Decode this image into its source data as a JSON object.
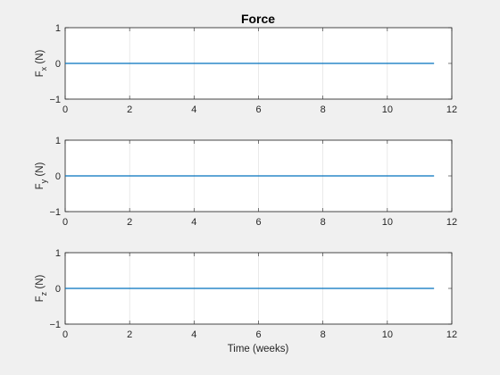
{
  "chart_data": {
    "type": "line",
    "title": "Force",
    "xlabel": "Time (weeks)",
    "xlim": [
      0,
      12
    ],
    "xticks": [
      "0",
      "2",
      "4",
      "6",
      "8",
      "10",
      "12"
    ],
    "grid": "x",
    "line_color": "#0072BD",
    "subplots": [
      {
        "ylabel_main": "F",
        "ylabel_sub": "x",
        "ylabel_unit": " (N)",
        "ylim": [
          -1,
          1
        ],
        "yticks": [
          "-1",
          "0",
          "1"
        ],
        "series": [
          {
            "x": [
              0,
              11.45
            ],
            "y": [
              0,
              0
            ]
          }
        ]
      },
      {
        "ylabel_main": "F",
        "ylabel_sub": "y",
        "ylabel_unit": " (N)",
        "ylim": [
          -1,
          1
        ],
        "yticks": [
          "-1",
          "0",
          "1"
        ],
        "series": [
          {
            "x": [
              0,
              11.45
            ],
            "y": [
              0,
              0
            ]
          }
        ]
      },
      {
        "ylabel_main": "F",
        "ylabel_sub": "z",
        "ylabel_unit": " (N)",
        "ylim": [
          -1,
          1
        ],
        "yticks": [
          "-1",
          "0",
          "1"
        ],
        "series": [
          {
            "x": [
              0,
              11.45
            ],
            "y": [
              0,
              0
            ]
          }
        ]
      }
    ]
  }
}
